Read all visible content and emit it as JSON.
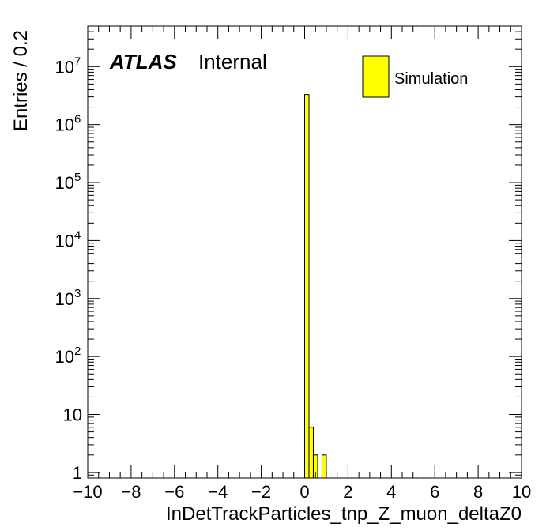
{
  "chart_data": {
    "type": "bar",
    "experiment": "ATLAS",
    "status_label": "Internal",
    "xlabel": "InDetTrackParticles_tnp_Z_muon_deltaZ0",
    "ylabel": "Entries / 0.2",
    "xlim": [
      -10,
      10
    ],
    "ylim": [
      0.8,
      50000000
    ],
    "y_scale": "log",
    "bin_width": 0.2,
    "grid": false,
    "legend_position": "top-right",
    "x_ticks": [
      -10,
      -8,
      -6,
      -4,
      -2,
      0,
      2,
      4,
      6,
      8,
      10
    ],
    "x_tick_labels": [
      "−10",
      "−8",
      "−6",
      "−4",
      "−2",
      "0",
      "2",
      "4",
      "6",
      "8",
      "10"
    ],
    "y_ticks": [
      {
        "value": 1,
        "base": "1",
        "exp": ""
      },
      {
        "value": 10,
        "base": "10",
        "exp": ""
      },
      {
        "value": 100,
        "base": "10",
        "exp": "2"
      },
      {
        "value": 1000,
        "base": "10",
        "exp": "3"
      },
      {
        "value": 10000,
        "base": "10",
        "exp": "4"
      },
      {
        "value": 100000,
        "base": "10",
        "exp": "5"
      },
      {
        "value": 1000000,
        "base": "10",
        "exp": "6"
      },
      {
        "value": 10000000,
        "base": "10",
        "exp": "7"
      }
    ],
    "series": [
      {
        "name": "Simulation",
        "color": "#ffff00",
        "edge_color": "#000000",
        "bins": [
          {
            "x0": 0.0,
            "x1": 0.2,
            "value": 3300000
          },
          {
            "x0": 0.2,
            "x1": 0.4,
            "value": 6
          },
          {
            "x0": 0.4,
            "x1": 0.6,
            "value": 2
          },
          {
            "x0": 0.6,
            "x1": 0.8,
            "value": 0
          },
          {
            "x0": 0.8,
            "x1": 1.0,
            "value": 2
          }
        ]
      }
    ]
  }
}
